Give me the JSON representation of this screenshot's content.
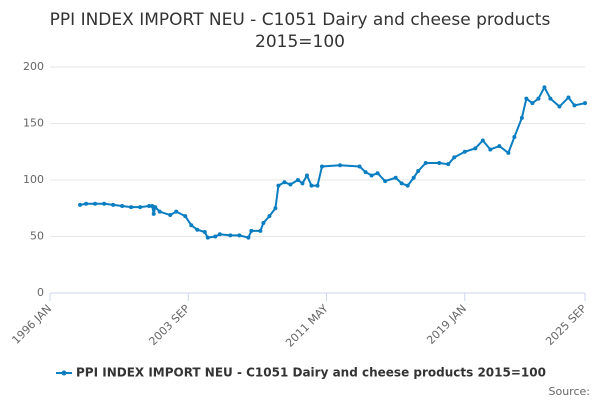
{
  "chart_data": {
    "type": "line",
    "title": "PPI INDEX IMPORT NEU - C1051 Dairy and cheese products",
    "subtitle": "2015=100",
    "source": "Source:",
    "x": [
      "1997-09",
      "1998-01",
      "1998-07",
      "1999-01",
      "1999-07",
      "2000-01",
      "2000-07",
      "2001-01",
      "2001-07",
      "2001-09",
      "2001-10",
      "2001-11",
      "2002-02",
      "2002-09",
      "2003-01",
      "2003-07",
      "2003-11",
      "2004-03",
      "2004-08",
      "2004-10",
      "2005-03",
      "2005-06",
      "2006-01",
      "2006-07",
      "2007-01",
      "2007-03",
      "2007-09",
      "2007-11",
      "2008-03",
      "2008-07",
      "2008-09",
      "2009-01",
      "2009-05",
      "2009-10",
      "2010-01",
      "2010-04",
      "2010-07",
      "2010-11",
      "2011-02",
      "2012-02",
      "2013-03",
      "2013-07",
      "2013-11",
      "2014-03",
      "2014-08",
      "2015-03",
      "2015-07",
      "2015-11",
      "2016-03",
      "2016-06",
      "2016-11",
      "2017-08",
      "2018-02",
      "2018-06",
      "2019-01",
      "2019-08",
      "2020-01",
      "2020-06",
      "2020-12",
      "2021-06",
      "2021-10",
      "2022-03",
      "2022-06",
      "2022-10",
      "2023-02",
      "2023-06",
      "2023-10",
      "2024-04",
      "2024-10",
      "2025-02",
      "2025-09"
    ],
    "series": [
      {
        "name": "PPI INDEX IMPORT NEU - C1051 Dairy and cheese products 2015=100",
        "color": "#0b7dc1",
        "values": [
          78,
          79,
          79,
          79,
          78,
          77,
          76,
          76,
          77,
          77,
          70,
          76,
          72,
          69,
          72,
          68,
          60,
          56,
          54,
          49,
          50,
          52,
          51,
          51,
          49,
          55,
          55,
          62,
          68,
          75,
          95,
          98,
          96,
          100,
          97,
          104,
          95,
          95,
          112,
          113,
          112,
          107,
          104,
          106,
          99,
          102,
          97,
          95,
          102,
          108,
          115,
          115,
          114,
          120,
          125,
          128,
          135,
          127,
          130,
          124,
          138,
          155,
          172,
          168,
          172,
          182,
          172,
          165,
          173,
          166,
          168
        ]
      }
    ],
    "xlim": [
      "1996-01",
      "2025-09"
    ],
    "xticks": [
      {
        "value": "1996-01",
        "label": "1996 JAN"
      },
      {
        "value": "2003-09",
        "label": "2003 SEP"
      },
      {
        "value": "2011-05",
        "label": "2011 MAY"
      },
      {
        "value": "2019-01",
        "label": "2019 JAN"
      },
      {
        "value": "2025-09",
        "label": "2025 SEP"
      }
    ],
    "ylim": [
      0,
      200
    ],
    "yticks": [
      0,
      50,
      100,
      150,
      200
    ],
    "grid": true,
    "legend": "bottom"
  }
}
